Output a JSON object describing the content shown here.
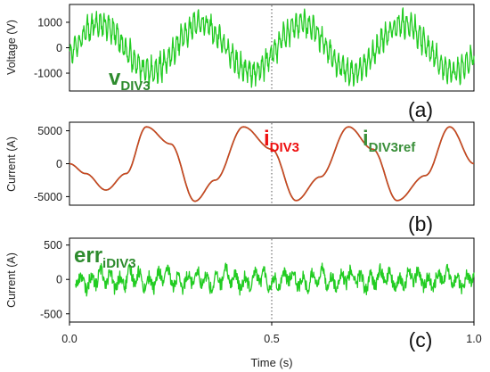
{
  "chart_data": [
    {
      "panel": "(a)",
      "type": "line",
      "ylabel": "Voltage (V)",
      "xlim": [
        0,
        1
      ],
      "ylim": [
        -1700,
        1700
      ],
      "yticks": [
        -1000,
        0,
        1000
      ],
      "ytick_labels": [
        "-1000",
        "0",
        "1000"
      ],
      "grid": "dotted vertical line at x = 0.5",
      "annotation": {
        "main": "v",
        "sub": "DIV3",
        "color": "#2e8b2e"
      },
      "series": [
        {
          "color": "#22cc22",
          "shape": "noisy sinusoid",
          "fundamental_hz": 4,
          "fundamental_amplitude": 950,
          "ripple_amplitude": 500,
          "start": 0,
          "end": 1
        }
      ]
    },
    {
      "panel": "(b)",
      "type": "line",
      "ylabel": "Current (A)",
      "xlim": [
        0,
        1
      ],
      "ylim": [
        -6300,
        6300
      ],
      "yticks": [
        -5000,
        0,
        5000
      ],
      "ytick_labels": [
        "-5000",
        "0",
        "5000"
      ],
      "grid": "dotted vertical line at x = 0.5",
      "annotations": [
        {
          "main": "i",
          "sub": "DIV3",
          "color": "#ee1111"
        },
        {
          "main": "i",
          "sub": "DIV3ref",
          "color": "#3a8f3a"
        }
      ],
      "series": [
        {
          "color": "#3a9a3a",
          "role": "reference",
          "x": [
            0.0,
            0.04,
            0.09,
            0.14,
            0.19,
            0.25,
            0.31,
            0.36,
            0.43,
            0.5,
            0.56,
            0.62,
            0.69,
            0.75,
            0.81,
            0.88,
            0.94,
            1.0
          ],
          "y": [
            0,
            -1500,
            -4000,
            -1500,
            5600,
            3000,
            -5700,
            -2500,
            5600,
            2200,
            -5600,
            -2000,
            5600,
            2200,
            -5600,
            -1800,
            5600,
            0
          ]
        },
        {
          "color": "#cc4422",
          "role": "measured",
          "x": [
            0.0,
            0.04,
            0.09,
            0.14,
            0.19,
            0.25,
            0.31,
            0.36,
            0.43,
            0.5,
            0.56,
            0.62,
            0.69,
            0.75,
            0.81,
            0.88,
            0.94,
            1.0
          ],
          "y": [
            0,
            -1500,
            -4000,
            -1500,
            5600,
            3000,
            -5700,
            -2500,
            5600,
            2200,
            -5600,
            -2000,
            5600,
            2200,
            -5600,
            -1800,
            5600,
            0
          ]
        }
      ]
    },
    {
      "panel": "(c)",
      "type": "line",
      "ylabel": "Current (A)",
      "xlabel": "Time (s)",
      "xlim": [
        0,
        1
      ],
      "ylim": [
        -620,
        600
      ],
      "yticks": [
        -500,
        0,
        500
      ],
      "ytick_labels": [
        "-500",
        "0",
        "500"
      ],
      "xticks": [
        0.0,
        0.5,
        1.0
      ],
      "xtick_labels": [
        "0.0",
        "0.5",
        "1.0"
      ],
      "grid": "dotted vertical line at x = 0.5",
      "annotation": {
        "main": "err",
        "sub": "iDIV3",
        "color": "#2e8b2e"
      },
      "series": [
        {
          "color": "#22cc22",
          "shape": "noise around zero",
          "noise_amplitude": 170,
          "start": 0.015,
          "end": 1
        }
      ]
    }
  ]
}
